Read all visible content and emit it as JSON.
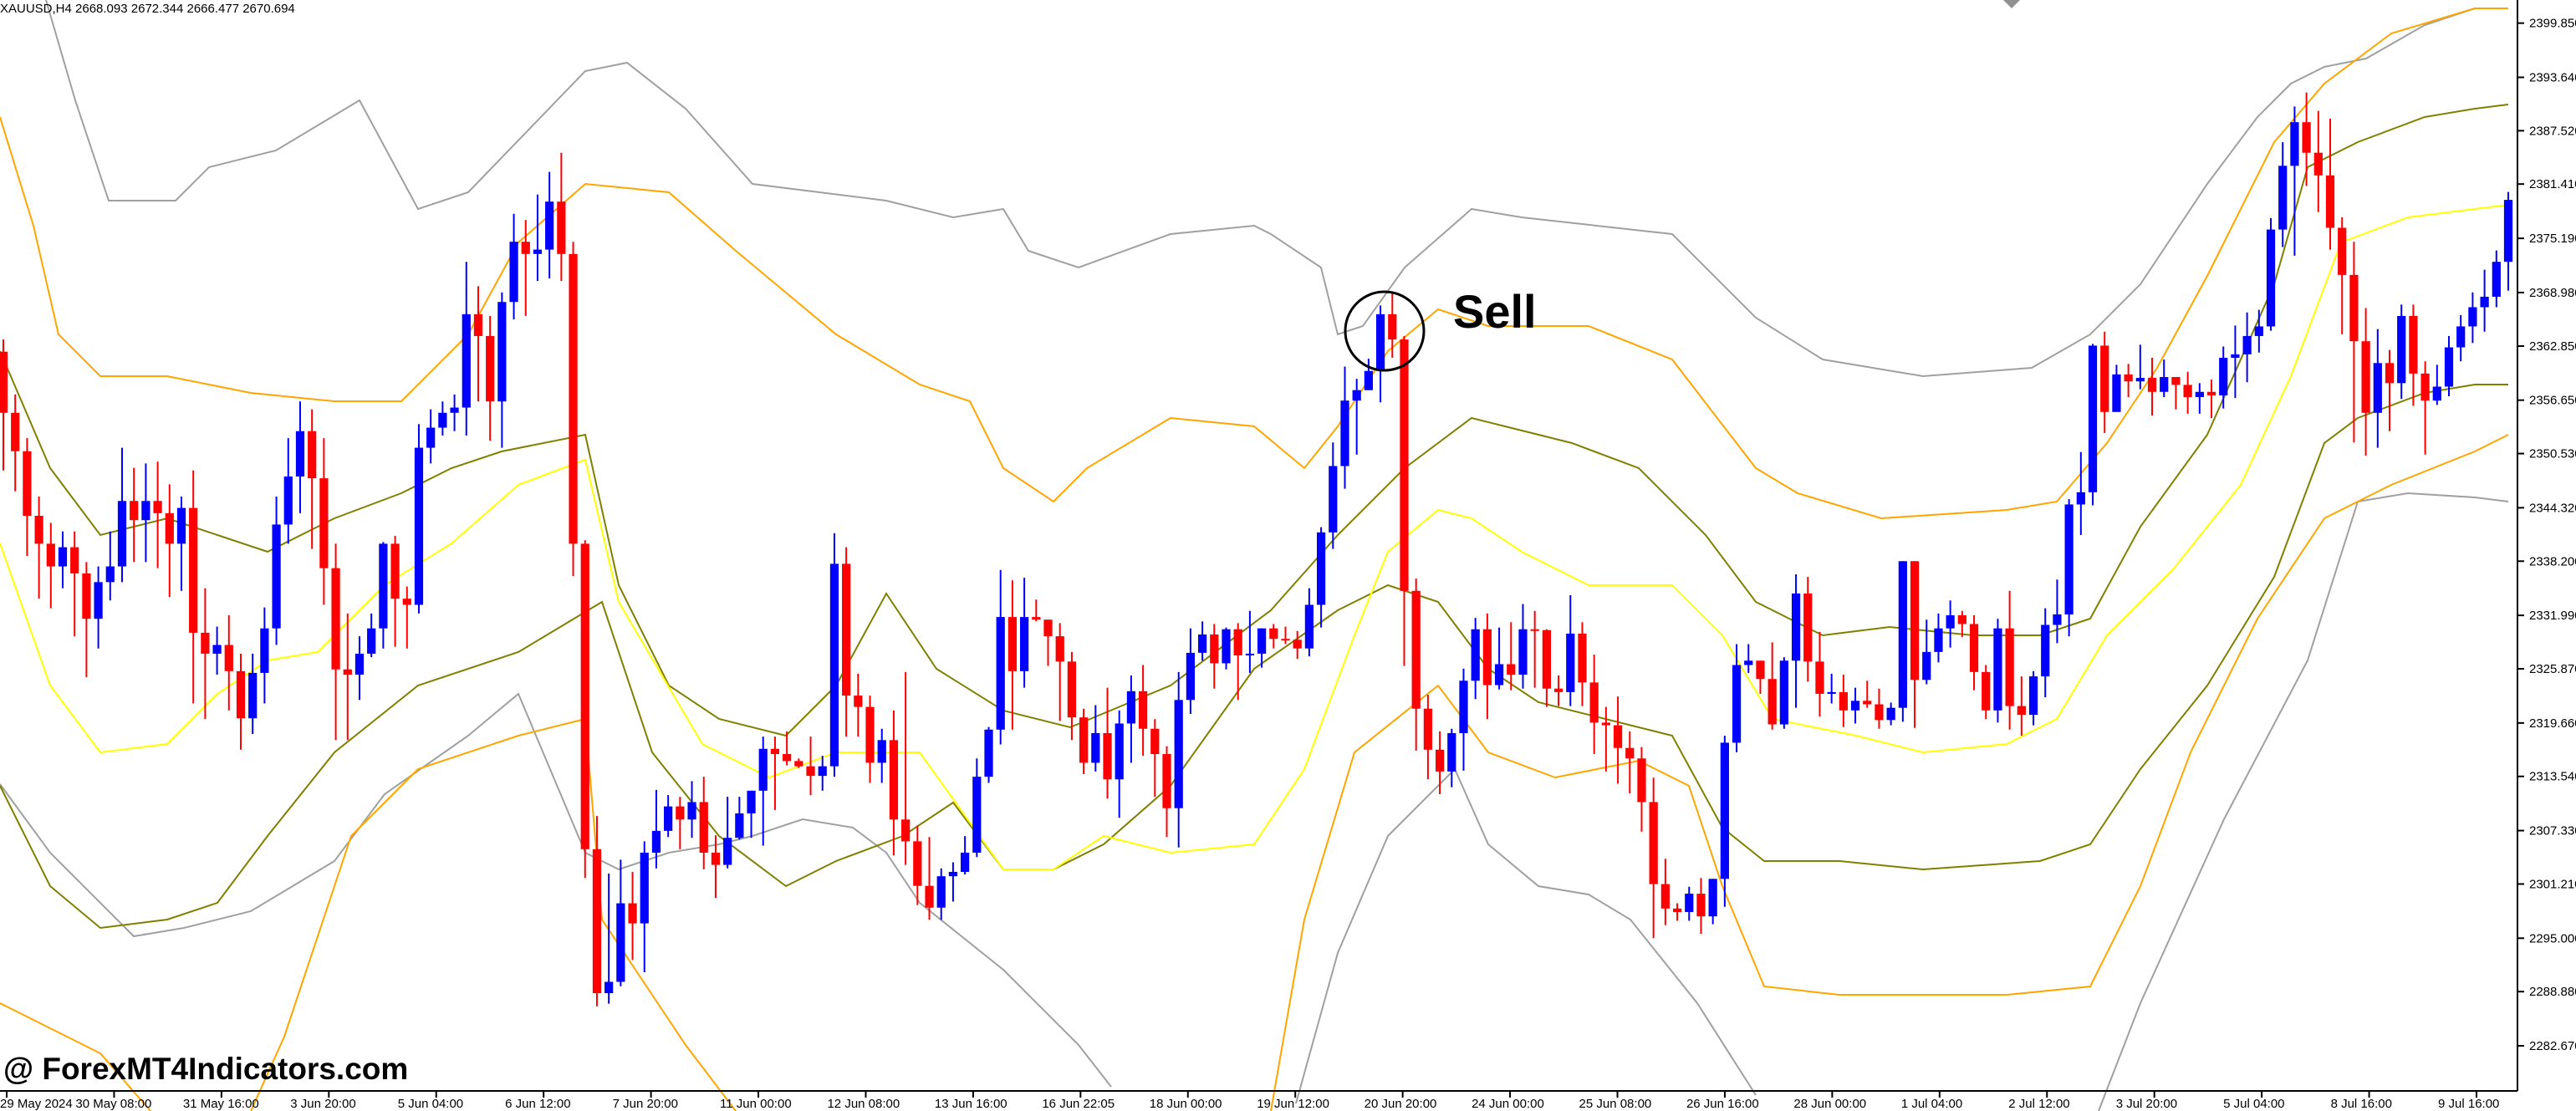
{
  "header": {
    "symbol_info": "XAUUSD,H4  2668.093 2672.344 2666.477 2670.694"
  },
  "watermark": "@ ForexMT4Indicators.com",
  "annotation": {
    "label": "Sell"
  },
  "colors": {
    "bull": "#0000ff",
    "bear": "#ff0000",
    "band_inner": "#ffff00",
    "band_mid": "#808000",
    "band_outer": "#ffa500",
    "band_outermost": "#a0a0a0"
  },
  "chart_data": {
    "type": "candlestick",
    "indicator": "Bollinger Bands",
    "symbol": "XAUUSD",
    "timeframe": "H4",
    "y_ticks": [
      "2399.850",
      "2393.640",
      "2387.520",
      "2381.410",
      "2375.190",
      "2368.980",
      "2362.850",
      "2356.650",
      "2350.530",
      "2344.320",
      "2338.200",
      "2331.990",
      "2325.870",
      "2319.660",
      "2313.540",
      "2307.330",
      "2301.210",
      "2295.000",
      "2288.880",
      "2282.670"
    ],
    "ylim": [
      2277.5,
      2402.5
    ],
    "x_ticks": [
      "29 May 2024",
      "30 May 08:00",
      "31 May 16:00",
      "3 Jun 20:00",
      "5 Jun 04:00",
      "6 Jun 12:00",
      "7 Jun 20:00",
      "11 Jun 00:00",
      "12 Jun 08:00",
      "13 Jun 16:00",
      "16 Jun 22:05",
      "18 Jun 00:00",
      "19 Jun 12:00",
      "20 Jun 20:00",
      "24 Jun 00:00",
      "25 Jun 08:00",
      "26 Jun 16:00",
      "28 Jun 00:00",
      "1 Jul 04:00",
      "2 Jul 12:00",
      "3 Jul 20:00",
      "5 Jul 04:00",
      "8 Jul 16:00",
      "9 Jul 16:00"
    ],
    "candles": [
      [
        2362.2,
        2355.2,
        2348.6,
        2363.6
      ],
      [
        2355.2,
        2350.8,
        2346.2,
        2357.3
      ],
      [
        2350.8,
        2343.4,
        2338.8,
        2352.3
      ],
      [
        2343.4,
        2340.2,
        2333.9,
        2345.6
      ],
      [
        2340.2,
        2337.6,
        2332.8,
        2342.6
      ],
      [
        2337.6,
        2339.8,
        2335.1,
        2341.6
      ],
      [
        2339.8,
        2336.8,
        2329.6,
        2341.6
      ],
      [
        2336.8,
        2331.6,
        2324.9,
        2338.1
      ],
      [
        2331.6,
        2335.8,
        2328.2,
        2337.6
      ],
      [
        2335.8,
        2337.6,
        2333.7,
        2341.6
      ],
      [
        2337.6,
        2345.1,
        2335.8,
        2351.2
      ],
      [
        2345.1,
        2342.9,
        2338.1,
        2348.9
      ],
      [
        2342.9,
        2345.1,
        2338.1,
        2349.4
      ],
      [
        2345.1,
        2343.7,
        2337.4,
        2349.6
      ],
      [
        2343.7,
        2340.2,
        2334.1,
        2347.0
      ],
      [
        2340.2,
        2344.3,
        2334.8,
        2345.6
      ],
      [
        2344.3,
        2330.0,
        2321.9,
        2348.6
      ],
      [
        2330.0,
        2327.6,
        2320.1,
        2335.1
      ],
      [
        2327.6,
        2328.6,
        2325.2,
        2330.7
      ],
      [
        2328.6,
        2325.6,
        2321.1,
        2332.0
      ],
      [
        2325.6,
        2320.2,
        2316.6,
        2327.6
      ],
      [
        2320.2,
        2325.4,
        2318.4,
        2327.6
      ],
      [
        2325.4,
        2330.5,
        2321.9,
        2332.9
      ],
      [
        2330.5,
        2342.4,
        2328.6,
        2345.6
      ],
      [
        2342.4,
        2347.9,
        2340.2,
        2352.3
      ],
      [
        2347.9,
        2353.1,
        2343.7,
        2356.5
      ],
      [
        2353.1,
        2347.7,
        2339.6,
        2355.6
      ],
      [
        2347.7,
        2337.4,
        2333.2,
        2352.3
      ],
      [
        2337.4,
        2325.8,
        2317.7,
        2340.2
      ],
      [
        2325.8,
        2325.2,
        2317.7,
        2332.2
      ],
      [
        2325.2,
        2327.6,
        2322.3,
        2329.6
      ],
      [
        2327.6,
        2330.5,
        2327.2,
        2332.2
      ],
      [
        2330.5,
        2340.2,
        2328.2,
        2340.4
      ],
      [
        2340.2,
        2333.9,
        2328.4,
        2341.1
      ],
      [
        2333.9,
        2333.2,
        2328.2,
        2335.3
      ],
      [
        2333.2,
        2351.2,
        2332.2,
        2353.9
      ],
      [
        2351.2,
        2353.5,
        2349.4,
        2355.6
      ],
      [
        2353.5,
        2355.2,
        2352.6,
        2356.5
      ],
      [
        2355.2,
        2355.8,
        2353.1,
        2357.3
      ],
      [
        2355.8,
        2366.5,
        2352.6,
        2372.5
      ],
      [
        2366.5,
        2364.0,
        2356.5,
        2369.7
      ],
      [
        2364.0,
        2356.5,
        2352.0,
        2366.3
      ],
      [
        2356.5,
        2367.9,
        2351.2,
        2369.0
      ],
      [
        2367.9,
        2374.8,
        2365.9,
        2378.0
      ],
      [
        2374.8,
        2373.4,
        2366.3,
        2377.3
      ],
      [
        2373.4,
        2373.9,
        2370.3,
        2380.2
      ],
      [
        2373.9,
        2379.4,
        2370.6,
        2382.8
      ],
      [
        2379.4,
        2373.4,
        2370.3,
        2385.0
      ],
      [
        2373.4,
        2340.2,
        2336.5,
        2374.8
      ],
      [
        2340.2,
        2305.2,
        2301.9,
        2340.6
      ],
      [
        2305.2,
        2288.7,
        2287.2,
        2309.0
      ],
      [
        2288.7,
        2290.0,
        2287.5,
        2302.4
      ],
      [
        2290.0,
        2299.0,
        2289.5,
        2304.0
      ],
      [
        2299.0,
        2296.7,
        2292.5,
        2302.6
      ],
      [
        2296.7,
        2304.8,
        2291.1,
        2306.1
      ],
      [
        2304.8,
        2307.3,
        2303.0,
        2312.0
      ],
      [
        2307.3,
        2310.1,
        2306.6,
        2311.4
      ],
      [
        2310.1,
        2308.6,
        2305.2,
        2311.2
      ],
      [
        2308.6,
        2310.6,
        2306.5,
        2313.0
      ],
      [
        2310.6,
        2304.8,
        2302.9,
        2313.5
      ],
      [
        2304.8,
        2303.4,
        2299.6,
        2306.8
      ],
      [
        2303.4,
        2306.5,
        2303.0,
        2311.2
      ],
      [
        2306.5,
        2309.3,
        2306.3,
        2311.2
      ],
      [
        2309.3,
        2311.9,
        2306.5,
        2311.9
      ],
      [
        2311.9,
        2316.7,
        2305.6,
        2318.1
      ],
      [
        2316.7,
        2316.1,
        2309.7,
        2318.1
      ],
      [
        2316.1,
        2315.3,
        2314.8,
        2318.7
      ],
      [
        2315.3,
        2314.7,
        2314.5,
        2315.6
      ],
      [
        2314.7,
        2313.6,
        2311.4,
        2318.1
      ],
      [
        2313.6,
        2314.7,
        2311.9,
        2315.9
      ],
      [
        2314.7,
        2337.9,
        2313.5,
        2341.4
      ],
      [
        2337.9,
        2322.8,
        2318.1,
        2339.8
      ],
      [
        2322.8,
        2321.5,
        2318.1,
        2325.3
      ],
      [
        2321.5,
        2315.1,
        2312.8,
        2322.8
      ],
      [
        2315.1,
        2317.7,
        2312.8,
        2319.0
      ],
      [
        2317.7,
        2308.6,
        2304.5,
        2321.1
      ],
      [
        2308.6,
        2306.1,
        2303.4,
        2325.5
      ],
      [
        2306.1,
        2301.0,
        2298.8,
        2307.9
      ],
      [
        2301.0,
        2298.5,
        2297.1,
        2306.6
      ],
      [
        2298.5,
        2302.1,
        2297.1,
        2303.0
      ],
      [
        2302.1,
        2302.6,
        2299.2,
        2303.7
      ],
      [
        2302.6,
        2304.8,
        2302.3,
        2306.7
      ],
      [
        2304.8,
        2313.5,
        2304.3,
        2315.6
      ],
      [
        2313.5,
        2318.9,
        2312.8,
        2319.2
      ],
      [
        2318.9,
        2331.8,
        2317.2,
        2337.2
      ],
      [
        2331.8,
        2325.6,
        2318.9,
        2336.0
      ],
      [
        2325.6,
        2331.8,
        2323.7,
        2336.3
      ],
      [
        2331.8,
        2331.5,
        2331.3,
        2333.8
      ],
      [
        2331.5,
        2329.6,
        2326.2,
        2331.5
      ],
      [
        2329.6,
        2326.7,
        2319.9,
        2331.1
      ],
      [
        2326.7,
        2320.3,
        2317.7,
        2327.8
      ],
      [
        2320.3,
        2315.1,
        2313.8,
        2321.3
      ],
      [
        2315.1,
        2318.5,
        2314.1,
        2321.7
      ],
      [
        2318.5,
        2313.2,
        2311.0,
        2323.7
      ],
      [
        2313.2,
        2319.6,
        2308.8,
        2321.1
      ],
      [
        2319.6,
        2323.3,
        2315.1,
        2325.1
      ],
      [
        2323.3,
        2319.0,
        2315.9,
        2326.3
      ],
      [
        2319.0,
        2316.1,
        2311.2,
        2320.1
      ],
      [
        2316.1,
        2309.9,
        2306.6,
        2317.0
      ],
      [
        2309.9,
        2322.3,
        2305.4,
        2325.5
      ],
      [
        2322.3,
        2327.7,
        2320.7,
        2330.5
      ],
      [
        2327.7,
        2329.8,
        2326.8,
        2331.3
      ],
      [
        2329.8,
        2326.5,
        2323.6,
        2331.0
      ],
      [
        2326.5,
        2330.4,
        2325.8,
        2330.6
      ],
      [
        2330.4,
        2327.4,
        2322.3,
        2331.1
      ],
      [
        2327.4,
        2327.6,
        2325.4,
        2332.5
      ],
      [
        2327.6,
        2330.5,
        2326.0,
        2330.5
      ],
      [
        2330.5,
        2329.3,
        2328.2,
        2331.0
      ],
      [
        2329.3,
        2329.2,
        2328.7,
        2330.7
      ],
      [
        2329.2,
        2328.2,
        2327.0,
        2330.2
      ],
      [
        2328.2,
        2333.2,
        2327.3,
        2335.1
      ],
      [
        2333.2,
        2341.5,
        2330.6,
        2342.1
      ],
      [
        2341.5,
        2349.1,
        2339.6,
        2351.8
      ],
      [
        2349.1,
        2356.6,
        2346.5,
        2360.5
      ],
      [
        2356.6,
        2357.8,
        2350.4,
        2359.1
      ],
      [
        2357.8,
        2360.0,
        2357.8,
        2361.4
      ],
      [
        2360.0,
        2366.5,
        2356.4,
        2367.5
      ],
      [
        2366.5,
        2363.6,
        2361.5,
        2368.9
      ],
      [
        2363.6,
        2334.8,
        2326.2,
        2364.0
      ],
      [
        2334.8,
        2321.3,
        2316.5,
        2336.2
      ],
      [
        2321.3,
        2316.6,
        2313.2,
        2322.9
      ],
      [
        2316.6,
        2314.1,
        2311.5,
        2318.7
      ],
      [
        2314.1,
        2318.5,
        2312.3,
        2319.0
      ],
      [
        2318.5,
        2324.5,
        2314.2,
        2325.9
      ],
      [
        2324.5,
        2330.4,
        2322.4,
        2331.7
      ],
      [
        2330.4,
        2324.0,
        2320.1,
        2332.2
      ],
      [
        2324.0,
        2326.4,
        2323.5,
        2330.6
      ],
      [
        2326.4,
        2325.2,
        2323.4,
        2331.2
      ],
      [
        2325.2,
        2330.4,
        2323.6,
        2333.3
      ],
      [
        2330.4,
        2330.3,
        2323.7,
        2332.5
      ],
      [
        2330.3,
        2323.6,
        2321.5,
        2330.4
      ],
      [
        2323.6,
        2323.2,
        2321.6,
        2325.1
      ],
      [
        2323.2,
        2329.9,
        2321.6,
        2334.3
      ],
      [
        2329.9,
        2324.3,
        2321.6,
        2331.2
      ],
      [
        2324.3,
        2319.7,
        2316.1,
        2327.5
      ],
      [
        2319.7,
        2319.4,
        2314.1,
        2321.5
      ],
      [
        2319.4,
        2316.8,
        2312.7,
        2322.7
      ],
      [
        2316.8,
        2315.6,
        2311.6,
        2318.7
      ],
      [
        2315.6,
        2310.6,
        2307.2,
        2316.9
      ],
      [
        2310.6,
        2301.2,
        2295.0,
        2313.4
      ],
      [
        2301.2,
        2298.4,
        2296.5,
        2304.1
      ],
      [
        2298.4,
        2298.0,
        2297.0,
        2299.0
      ],
      [
        2298.0,
        2300.1,
        2297.0,
        2300.9
      ],
      [
        2300.1,
        2297.5,
        2295.5,
        2301.9
      ],
      [
        2297.5,
        2301.8,
        2296.6,
        2301.8
      ],
      [
        2301.8,
        2317.4,
        2298.6,
        2318.2
      ],
      [
        2317.4,
        2326.3,
        2316.3,
        2328.7
      ],
      [
        2326.3,
        2326.8,
        2325.4,
        2328.7
      ],
      [
        2326.8,
        2324.7,
        2323.0,
        2326.8
      ],
      [
        2324.7,
        2319.5,
        2318.9,
        2328.9
      ],
      [
        2319.5,
        2326.8,
        2319.0,
        2327.2
      ],
      [
        2326.8,
        2334.5,
        2321.4,
        2336.7
      ],
      [
        2334.5,
        2326.7,
        2324.4,
        2336.4
      ],
      [
        2326.7,
        2323.0,
        2320.4,
        2330.1
      ],
      [
        2323.0,
        2323.2,
        2321.9,
        2325.3
      ],
      [
        2323.2,
        2321.1,
        2319.2,
        2325.2
      ],
      [
        2321.1,
        2322.2,
        2319.6,
        2323.7
      ],
      [
        2322.2,
        2321.8,
        2321.4,
        2324.5
      ],
      [
        2321.8,
        2320.0,
        2319.0,
        2323.6
      ],
      [
        2320.0,
        2321.4,
        2319.4,
        2322.0
      ],
      [
        2321.4,
        2338.2,
        2319.8,
        2338.2
      ],
      [
        2338.2,
        2324.6,
        2319.1,
        2338.2
      ],
      [
        2324.6,
        2327.8,
        2324.1,
        2331.5
      ],
      [
        2327.8,
        2330.5,
        2326.6,
        2332.2
      ],
      [
        2330.5,
        2332.0,
        2328.3,
        2333.7
      ],
      [
        2332.0,
        2331.0,
        2329.5,
        2332.5
      ],
      [
        2331.0,
        2325.5,
        2323.4,
        2332.0
      ],
      [
        2325.5,
        2321.1,
        2320.1,
        2326.3
      ],
      [
        2321.1,
        2330.5,
        2319.7,
        2331.6
      ],
      [
        2330.5,
        2321.6,
        2318.9,
        2334.8
      ],
      [
        2321.6,
        2320.6,
        2318.2,
        2325.0
      ],
      [
        2320.6,
        2325.0,
        2319.4,
        2325.6
      ],
      [
        2325.0,
        2330.9,
        2322.6,
        2332.8
      ],
      [
        2330.9,
        2332.1,
        2328.8,
        2336.1
      ],
      [
        2332.1,
        2344.7,
        2329.6,
        2345.3
      ],
      [
        2344.7,
        2346.1,
        2341.2,
        2350.7
      ],
      [
        2346.1,
        2362.9,
        2344.6,
        2363.1
      ],
      [
        2362.9,
        2355.3,
        2352.9,
        2364.5
      ],
      [
        2355.3,
        2359.6,
        2356.3,
        2360.7
      ],
      [
        2359.6,
        2358.8,
        2357.0,
        2360.8
      ],
      [
        2358.8,
        2359.2,
        2357.9,
        2363.0
      ],
      [
        2359.2,
        2357.6,
        2354.9,
        2361.5
      ],
      [
        2357.6,
        2359.3,
        2357.0,
        2361.3
      ],
      [
        2359.3,
        2358.4,
        2355.6,
        2359.3
      ],
      [
        2358.4,
        2357.0,
        2355.1,
        2359.9
      ],
      [
        2357.0,
        2357.6,
        2355.1,
        2358.6
      ],
      [
        2357.6,
        2357.2,
        2354.6,
        2359.0
      ],
      [
        2357.2,
        2361.5,
        2355.7,
        2362.8
      ],
      [
        2361.5,
        2361.9,
        2356.9,
        2365.2
      ],
      [
        2361.9,
        2364.0,
        2358.7,
        2366.7
      ],
      [
        2364.0,
        2365.1,
        2362.1,
        2367.0
      ],
      [
        2365.1,
        2376.2,
        2364.6,
        2377.5
      ],
      [
        2376.2,
        2383.5,
        2374.2,
        2386.2
      ],
      [
        2383.5,
        2388.5,
        2373.2,
        2390.3
      ],
      [
        2388.5,
        2385.0,
        2381.2,
        2391.9
      ],
      [
        2385.0,
        2382.4,
        2378.2,
        2389.8
      ],
      [
        2382.4,
        2376.4,
        2373.9,
        2388.9
      ],
      [
        2376.4,
        2371.0,
        2364.2,
        2377.6
      ],
      [
        2371.0,
        2363.4,
        2351.8,
        2374.8
      ],
      [
        2363.4,
        2355.2,
        2350.3,
        2367.2
      ],
      [
        2355.2,
        2360.9,
        2351.2,
        2364.8
      ],
      [
        2360.9,
        2358.6,
        2353.1,
        2362.4
      ],
      [
        2358.6,
        2366.3,
        2356.8,
        2367.6
      ],
      [
        2366.3,
        2359.7,
        2356.0,
        2367.6
      ],
      [
        2359.7,
        2356.6,
        2350.4,
        2361.1
      ],
      [
        2356.6,
        2358.2,
        2356.1,
        2360.7
      ],
      [
        2358.2,
        2362.7,
        2357.1,
        2364.0
      ],
      [
        2362.7,
        2365.1,
        2361.1,
        2366.4
      ],
      [
        2365.1,
        2367.3,
        2363.2,
        2369.0
      ],
      [
        2367.3,
        2368.5,
        2364.5,
        2371.6
      ],
      [
        2368.5,
        2372.5,
        2367.3,
        2373.8
      ],
      [
        2372.5,
        2379.6,
        2369.2,
        2380.5
      ]
    ]
  }
}
